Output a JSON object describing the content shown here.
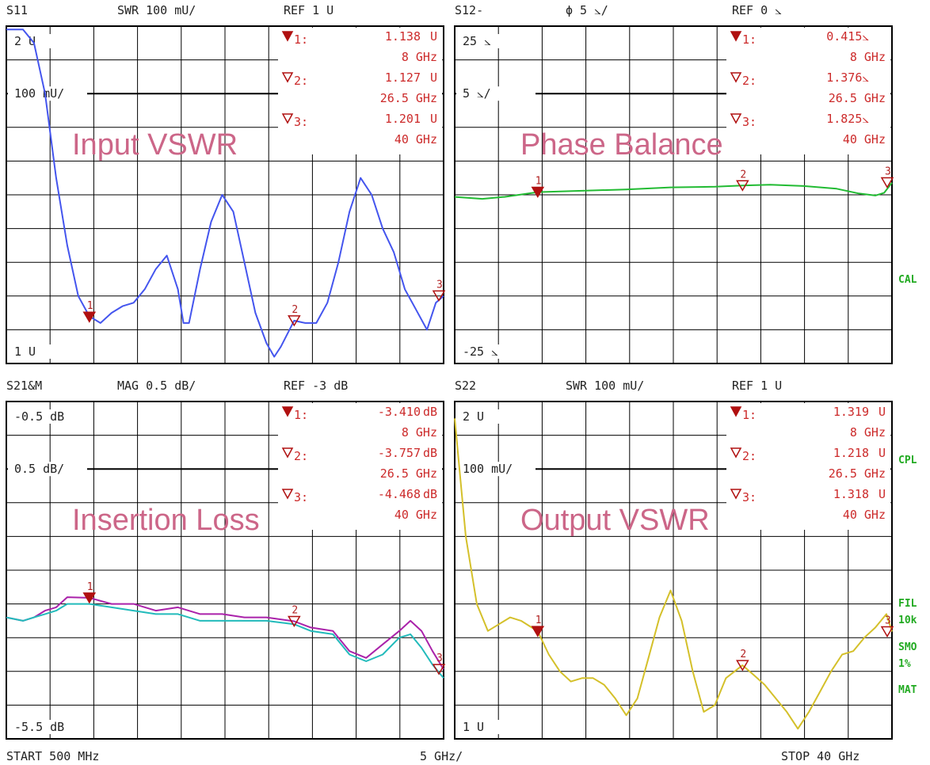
{
  "chart_data": [
    {
      "type": "line",
      "id": "s11",
      "header": {
        "param": "S11",
        "scale": "SWR 100 mU/",
        "ref": "REF 1 U"
      },
      "title": "Input VSWR",
      "yticks": {
        "top": "2 U",
        "mid": "100 mU/",
        "bottom": "1 U"
      },
      "ylim": [
        1.0,
        2.0
      ],
      "xlim": [
        0.5,
        40
      ],
      "x_unit": "GHz",
      "markers": [
        {
          "id": "1",
          "val": "1.138",
          "unit": "U",
          "freq": "8 GHz",
          "x": 8,
          "y": 1.138
        },
        {
          "id": "2",
          "val": "1.127",
          "unit": "U",
          "freq": "26.5 GHz",
          "x": 26.5,
          "y": 1.127
        },
        {
          "id": "3",
          "val": "1.201",
          "unit": "U",
          "freq": "40 GHz",
          "x": 40,
          "y": 1.201
        }
      ],
      "series": [
        {
          "color": "#4455ee",
          "values": [
            [
              0.5,
              1.99
            ],
            [
              2.0,
              1.99
            ],
            [
              3.0,
              1.95
            ],
            [
              4.0,
              1.8
            ],
            [
              5.0,
              1.55
            ],
            [
              6.0,
              1.35
            ],
            [
              7.0,
              1.2
            ],
            [
              8.0,
              1.14
            ],
            [
              9.0,
              1.12
            ],
            [
              10.0,
              1.15
            ],
            [
              11.0,
              1.17
            ],
            [
              12.0,
              1.18
            ],
            [
              13.0,
              1.22
            ],
            [
              14.0,
              1.28
            ],
            [
              15.0,
              1.32
            ],
            [
              16.0,
              1.22
            ],
            [
              16.5,
              1.12
            ],
            [
              17.0,
              1.12
            ],
            [
              18.0,
              1.28
            ],
            [
              19.0,
              1.42
            ],
            [
              20.0,
              1.5
            ],
            [
              21.0,
              1.45
            ],
            [
              22.0,
              1.3
            ],
            [
              23.0,
              1.15
            ],
            [
              24.0,
              1.06
            ],
            [
              24.7,
              1.02
            ],
            [
              25.3,
              1.05
            ],
            [
              26.5,
              1.127
            ],
            [
              27.5,
              1.12
            ],
            [
              28.5,
              1.12
            ],
            [
              29.5,
              1.18
            ],
            [
              30.5,
              1.3
            ],
            [
              31.5,
              1.45
            ],
            [
              32.5,
              1.55
            ],
            [
              33.5,
              1.5
            ],
            [
              34.5,
              1.4
            ],
            [
              35.5,
              1.33
            ],
            [
              36.5,
              1.22
            ],
            [
              37.5,
              1.16
            ],
            [
              38.5,
              1.1
            ],
            [
              39.3,
              1.18
            ],
            [
              40.0,
              1.2
            ]
          ]
        }
      ]
    },
    {
      "type": "line",
      "id": "s12",
      "header": {
        "param": "S12-",
        "scale": "ϕ    5 ⦣/",
        "ref": "REF 0 ⦣"
      },
      "title": "Phase Balance",
      "yticks": {
        "top": "25 ⦣",
        "mid": "5 ⦣/",
        "bottom": "-25 ⦣"
      },
      "ylim": [
        -25,
        25
      ],
      "xlim": [
        0.5,
        40
      ],
      "x_unit": "GHz",
      "markers": [
        {
          "id": "1",
          "val": "0.415⦣",
          "unit": "",
          "freq": "8 GHz",
          "x": 8,
          "y": 0.415
        },
        {
          "id": "2",
          "val": "1.376⦣",
          "unit": "",
          "freq": "26.5 GHz",
          "x": 26.5,
          "y": 1.376
        },
        {
          "id": "3",
          "val": "1.825⦣",
          "unit": "",
          "freq": "40 GHz",
          "x": 40,
          "y": 1.825
        }
      ],
      "series": [
        {
          "color": "#22bb33",
          "values": [
            [
              0.5,
              -0.3
            ],
            [
              3.0,
              -0.6
            ],
            [
              5.0,
              -0.3
            ],
            [
              8.0,
              0.4
            ],
            [
              12.0,
              0.6
            ],
            [
              16.0,
              0.8
            ],
            [
              20.0,
              1.1
            ],
            [
              24.0,
              1.2
            ],
            [
              26.5,
              1.38
            ],
            [
              29.0,
              1.5
            ],
            [
              32.0,
              1.3
            ],
            [
              35.0,
              0.9
            ],
            [
              37.0,
              0.2
            ],
            [
              38.5,
              -0.1
            ],
            [
              39.3,
              0.3
            ],
            [
              40.0,
              1.8
            ]
          ]
        }
      ]
    },
    {
      "type": "line",
      "id": "s21",
      "header": {
        "param": "S21&M",
        "scale": "MAG 0.5 dB/",
        "ref": "REF -3 dB"
      },
      "title": "Insertion Loss",
      "yticks": {
        "top": "-0.5 dB",
        "mid": "0.5 dB/",
        "bottom": "-5.5 dB"
      },
      "ylim": [
        -5.5,
        -0.5
      ],
      "xlim": [
        0.5,
        40
      ],
      "x_unit": "dB",
      "markers": [
        {
          "id": "1",
          "val": "-3.410",
          "unit": "dB",
          "freq": "8 GHz",
          "x": 8,
          "y": -3.41
        },
        {
          "id": "2",
          "val": "-3.757",
          "unit": "dB",
          "freq": "26.5 GHz",
          "x": 26.5,
          "y": -3.757
        },
        {
          "id": "3",
          "val": "-4.468",
          "unit": "dB",
          "freq": "40 GHz",
          "x": 40,
          "y": -4.468
        }
      ],
      "series": [
        {
          "color": "#aa22aa",
          "values": [
            [
              0.5,
              -3.7
            ],
            [
              2.0,
              -3.75
            ],
            [
              3.0,
              -3.7
            ],
            [
              4.0,
              -3.6
            ],
            [
              5.0,
              -3.55
            ],
            [
              6.0,
              -3.4
            ],
            [
              8.0,
              -3.41
            ],
            [
              10.0,
              -3.5
            ],
            [
              12.0,
              -3.5
            ],
            [
              14.0,
              -3.6
            ],
            [
              16.0,
              -3.55
            ],
            [
              18.0,
              -3.65
            ],
            [
              20.0,
              -3.65
            ],
            [
              22.0,
              -3.7
            ],
            [
              24.0,
              -3.7
            ],
            [
              26.5,
              -3.757
            ],
            [
              28.0,
              -3.85
            ],
            [
              30.0,
              -3.9
            ],
            [
              31.5,
              -4.2
            ],
            [
              33.0,
              -4.3
            ],
            [
              34.5,
              -4.1
            ],
            [
              36.0,
              -3.9
            ],
            [
              37.0,
              -3.75
            ],
            [
              38.0,
              -3.9
            ],
            [
              39.0,
              -4.2
            ],
            [
              40.0,
              -4.47
            ]
          ]
        },
        {
          "color": "#22bbbb",
          "values": [
            [
              0.5,
              -3.7
            ],
            [
              2.0,
              -3.75
            ],
            [
              3.0,
              -3.7
            ],
            [
              4.0,
              -3.65
            ],
            [
              5.0,
              -3.6
            ],
            [
              6.0,
              -3.5
            ],
            [
              8.0,
              -3.5
            ],
            [
              10.0,
              -3.55
            ],
            [
              12.0,
              -3.6
            ],
            [
              14.0,
              -3.65
            ],
            [
              16.0,
              -3.65
            ],
            [
              18.0,
              -3.75
            ],
            [
              20.0,
              -3.75
            ],
            [
              22.0,
              -3.75
            ],
            [
              24.0,
              -3.75
            ],
            [
              26.5,
              -3.8
            ],
            [
              28.0,
              -3.9
            ],
            [
              30.0,
              -3.95
            ],
            [
              31.5,
              -4.25
            ],
            [
              33.0,
              -4.35
            ],
            [
              34.5,
              -4.25
            ],
            [
              36.0,
              -4.0
            ],
            [
              37.0,
              -3.95
            ],
            [
              38.0,
              -4.15
            ],
            [
              39.0,
              -4.4
            ],
            [
              40.0,
              -4.6
            ]
          ]
        }
      ]
    },
    {
      "type": "line",
      "id": "s22",
      "header": {
        "param": "S22",
        "scale": "SWR 100 mU/",
        "ref": "REF 1 U"
      },
      "title": "Output VSWR",
      "yticks": {
        "top": "2 U",
        "mid": "100 mU/",
        "bottom": "1 U"
      },
      "ylim": [
        1.0,
        2.0
      ],
      "xlim": [
        0.5,
        40
      ],
      "x_unit": "GHz",
      "markers": [
        {
          "id": "1",
          "val": "1.319",
          "unit": "U",
          "freq": "8 GHz",
          "x": 8,
          "y": 1.319
        },
        {
          "id": "2",
          "val": "1.218",
          "unit": "U",
          "freq": "26.5 GHz",
          "x": 26.5,
          "y": 1.218
        },
        {
          "id": "3",
          "val": "1.318",
          "unit": "U",
          "freq": "40 GHz",
          "x": 40,
          "y": 1.318
        }
      ],
      "series": [
        {
          "color": "#d4c02a",
          "values": [
            [
              0.5,
              1.95
            ],
            [
              1.5,
              1.6
            ],
            [
              2.5,
              1.4
            ],
            [
              3.5,
              1.32
            ],
            [
              4.5,
              1.34
            ],
            [
              5.5,
              1.36
            ],
            [
              6.5,
              1.35
            ],
            [
              8.0,
              1.319
            ],
            [
              9.0,
              1.25
            ],
            [
              10.0,
              1.2
            ],
            [
              11.0,
              1.17
            ],
            [
              12.0,
              1.18
            ],
            [
              13.0,
              1.18
            ],
            [
              14.0,
              1.16
            ],
            [
              15.0,
              1.12
            ],
            [
              16.0,
              1.07
            ],
            [
              17.0,
              1.12
            ],
            [
              18.0,
              1.24
            ],
            [
              19.0,
              1.36
            ],
            [
              20.0,
              1.44
            ],
            [
              21.0,
              1.35
            ],
            [
              22.0,
              1.2
            ],
            [
              23.0,
              1.08
            ],
            [
              24.0,
              1.1
            ],
            [
              25.0,
              1.18
            ],
            [
              26.5,
              1.218
            ],
            [
              27.5,
              1.19
            ],
            [
              28.5,
              1.16
            ],
            [
              29.5,
              1.12
            ],
            [
              30.5,
              1.08
            ],
            [
              31.5,
              1.03
            ],
            [
              32.5,
              1.08
            ],
            [
              33.5,
              1.14
            ],
            [
              34.5,
              1.2
            ],
            [
              35.5,
              1.25
            ],
            [
              36.5,
              1.26
            ],
            [
              37.5,
              1.3
            ],
            [
              38.5,
              1.33
            ],
            [
              39.5,
              1.37
            ],
            [
              40.0,
              1.318
            ]
          ]
        }
      ]
    }
  ],
  "side_labels": [
    "CAL",
    "CPL",
    "FIL",
    "10k",
    "SMO",
    "1%",
    "MAT"
  ],
  "footer": {
    "start": "START  500 MHz",
    "div": "5 GHz/",
    "stop": "STOP 40 GHz"
  },
  "colors": {
    "grid": "#000000",
    "marker": "#b01010",
    "annotation": "#cc3333",
    "title": "#cc6688",
    "side": "#22aa22"
  }
}
